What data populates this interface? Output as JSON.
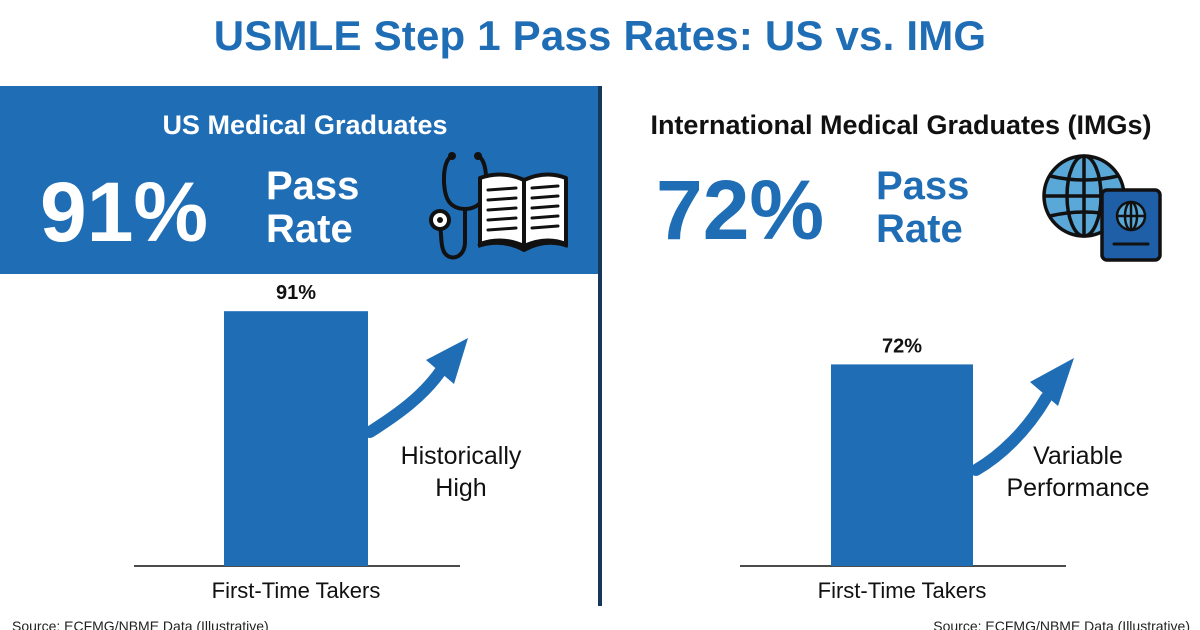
{
  "title": "USMLE Step 1 Pass Rates: US vs. IMG",
  "panels": {
    "us": {
      "heading": "US Medical Graduates",
      "big_value": "91%",
      "pass_label_1": "Pass",
      "pass_label_2": "Rate",
      "icon": "stethoscope-book-icon",
      "annotation_1": "Historically",
      "annotation_2": "High",
      "source": "Source: ECFMG/NBME Data (Illustrative)"
    },
    "img": {
      "heading": "International Medical Graduates (IMGs)",
      "big_value": "72%",
      "pass_label_1": "Pass",
      "pass_label_2": "Rate",
      "icon": "globe-passport-icon",
      "annotation_1": "Variable",
      "annotation_2": "Performance",
      "source": "Source: ECFMG/NBME Data (Illustrative)"
    }
  },
  "colors": {
    "accent": "#1f6db5",
    "divider": "#16365a",
    "text": "#111111"
  },
  "chart_data": [
    {
      "type": "bar",
      "categories": [
        "First-Time Takers"
      ],
      "values": [
        91
      ],
      "value_labels": [
        "91%"
      ],
      "ylim": [
        0,
        100
      ]
    },
    {
      "type": "bar",
      "categories": [
        "First-Time Takers"
      ],
      "values": [
        72
      ],
      "value_labels": [
        "72%"
      ],
      "ylim": [
        0,
        100
      ]
    }
  ]
}
